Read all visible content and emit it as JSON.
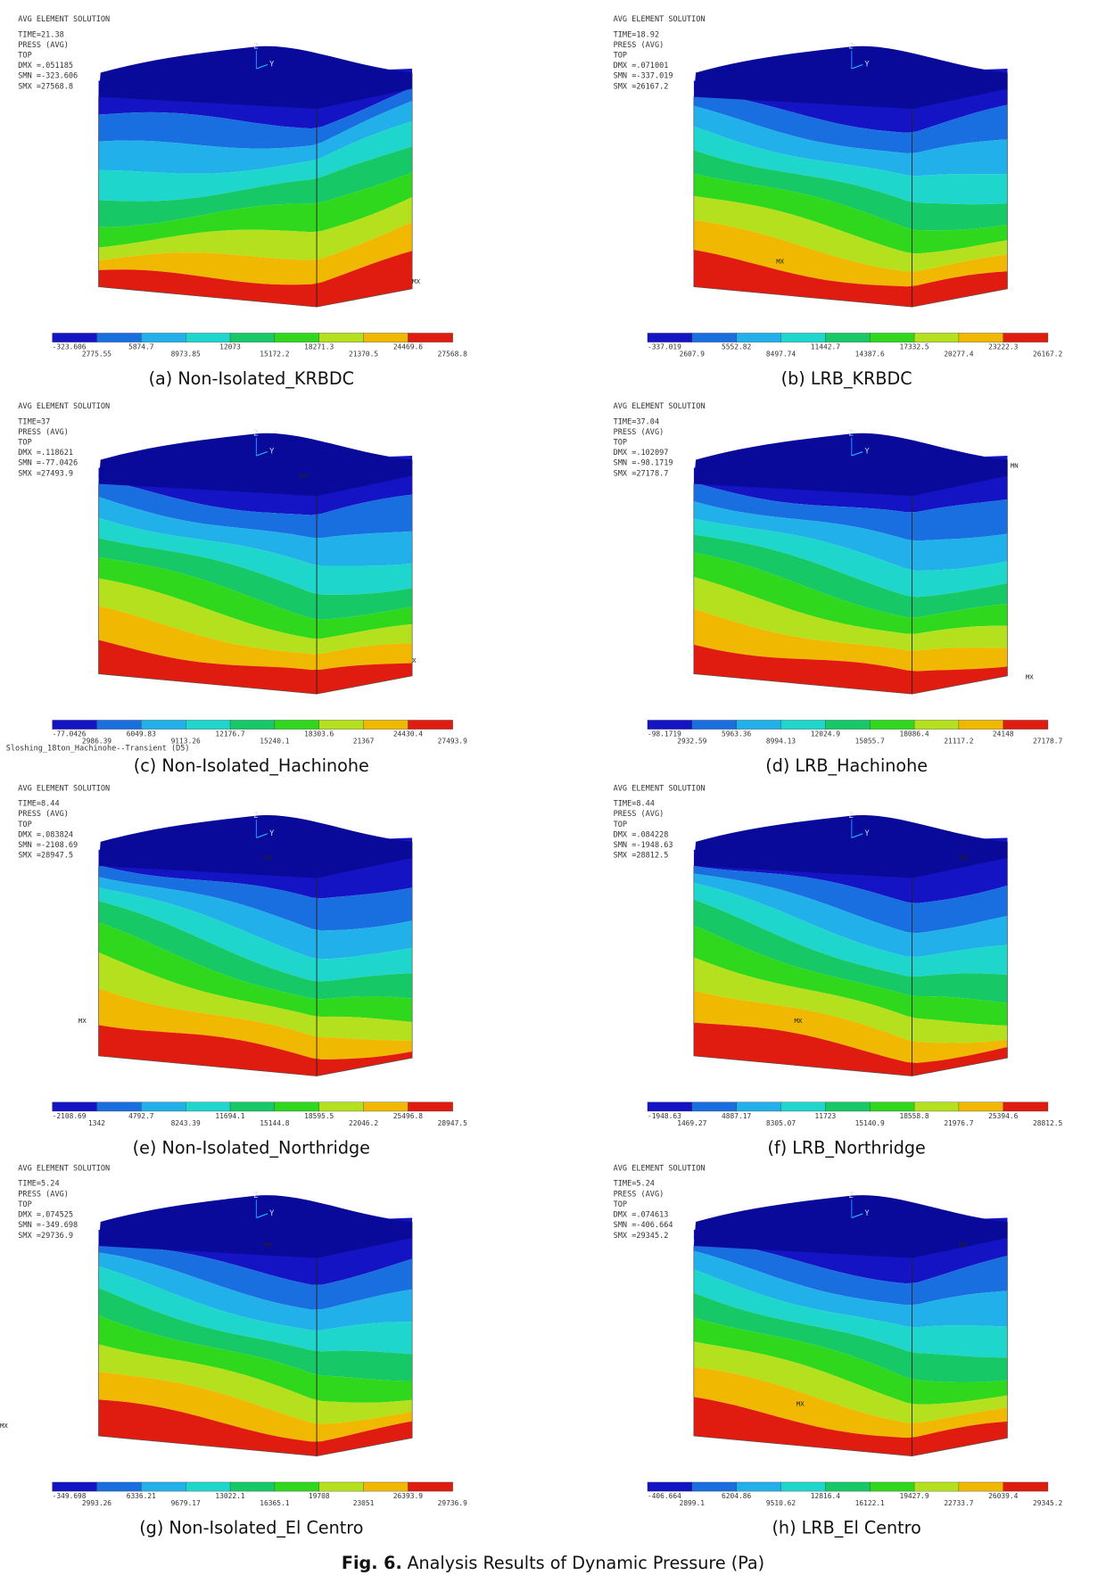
{
  "panels": [
    {
      "header": [
        "AVG ELEMENT SOLUTION",
        "TIME=21.38",
        "PRESS       (AVG)",
        "TOP",
        "DMX =.051185",
        "SMN =-323.606",
        "SMX =27568.8"
      ],
      "axis_labels": [
        "Z",
        "Y"
      ],
      "markers": [
        "MX"
      ],
      "colorbar": [
        "-323.606",
        "2775.55",
        "5874.7",
        "8973.85",
        "12073",
        "15172.2",
        "18271.3",
        "21370.5",
        "24469.6",
        "27568.8"
      ],
      "caption": "(a) Non-Isolated_KRBDC"
    },
    {
      "header": [
        "AVG ELEMENT SOLUTION",
        "TIME=18.92",
        "PRESS       (AVG)",
        "TOP",
        "DMX =.071001",
        "SMN =-337.019",
        "SMX =26167.2"
      ],
      "axis_labels": [
        "Z",
        "Y"
      ],
      "markers": [
        "MX"
      ],
      "colorbar": [
        "-337.019",
        "2607.9",
        "5552.82",
        "8497.74",
        "11442.7",
        "14387.6",
        "17332.5",
        "20277.4",
        "23222.3",
        "26167.2"
      ],
      "caption": "(b) LRB_KRBDC"
    },
    {
      "header": [
        "AVG ELEMENT SOLUTION",
        "TIME=37",
        "PRESS       (AVG)",
        "TOP",
        "DMX =.118621",
        "SMN =-77.0426",
        "SMX =27493.9"
      ],
      "axis_labels": [
        "Z",
        "Y"
      ],
      "markers": [
        "MN",
        "X"
      ],
      "colorbar": [
        "-77.0426",
        "2986.39",
        "6049.83",
        "9113.26",
        "12176.7",
        "15240.1",
        "18303.6",
        "21367",
        "24430.4",
        "27493.9"
      ],
      "extra": "Sloshing_18ton_Hachinohe--Transient (D5)",
      "caption": "(c) Non-Isolated_Hachinohe"
    },
    {
      "header": [
        "AVG ELEMENT SOLUTION",
        "TIME=37.04",
        "PRESS       (AVG)",
        "TOP",
        "DMX =.102097",
        "SMN =-98.1719",
        "SMX =27178.7"
      ],
      "axis_labels": [
        "Z",
        "Y"
      ],
      "markers": [
        "MN",
        "MX"
      ],
      "colorbar": [
        "-98.1719",
        "2932.59",
        "5963.36",
        "8994.13",
        "12024.9",
        "15055.7",
        "18086.4",
        "21117.2",
        "24148",
        "27178.7"
      ],
      "caption": "(d) LRB_Hachinohe"
    },
    {
      "header": [
        "AVG ELEMENT SOLUTION",
        "TIME=8.44",
        "PRESS       (AVG)",
        "TOP",
        "DMX =.083824",
        "SMN =-2108.69",
        "SMX =28947.5"
      ],
      "axis_labels": [
        "Z",
        "Y"
      ],
      "markers": [
        "MN",
        "MX"
      ],
      "colorbar": [
        "-2108.69",
        "1342",
        "4792.7",
        "8243.39",
        "11694.1",
        "15144.8",
        "18595.5",
        "22046.2",
        "25496.8",
        "28947.5"
      ],
      "caption": "(e) Non-Isolated_Northridge"
    },
    {
      "header": [
        "AVG ELEMENT SOLUTION",
        "TIME=8.44",
        "PRESS       (AVG)",
        "TOP",
        "DMX =.084228",
        "SMN =-1948.63",
        "SMX =28812.5"
      ],
      "axis_labels": [
        "Z",
        "Y"
      ],
      "markers": [
        "MN",
        "MX"
      ],
      "colorbar": [
        "-1948.63",
        "1469.27",
        "4887.17",
        "8305.07",
        "11723",
        "15140.9",
        "18558.8",
        "21976.7",
        "25394.6",
        "28812.5"
      ],
      "caption": "(f) LRB_Northridge"
    },
    {
      "header": [
        "AVG ELEMENT SOLUTION",
        "TIME=5.24",
        "PRESS       (AVG)",
        "TOP",
        "DMX =.074525",
        "SMN =-349.698",
        "SMX =29736.9"
      ],
      "axis_labels": [
        "Z",
        "Y"
      ],
      "markers": [
        "MN",
        "MX"
      ],
      "colorbar": [
        "-349.698",
        "2993.26",
        "6336.21",
        "9679.17",
        "13022.1",
        "16365.1",
        "19708",
        "23051",
        "26393.9",
        "29736.9"
      ],
      "caption": "(g) Non-Isolated_El Centro"
    },
    {
      "header": [
        "AVG ELEMENT SOLUTION",
        "TIME=5.24",
        "PRESS       (AVG)",
        "TOP",
        "DMX =.074613",
        "SMN =-406.664",
        "SMX =29345.2"
      ],
      "axis_labels": [
        "Z",
        "Y"
      ],
      "markers": [
        "MN",
        "MX"
      ],
      "colorbar": [
        "-406.664",
        "2899.1",
        "6204.86",
        "9510.62",
        "12816.4",
        "16122.1",
        "19427.9",
        "22733.7",
        "26039.4",
        "29345.2"
      ],
      "caption": "(h) LRB_El Centro"
    }
  ],
  "figure_label": "Fig. 6.",
  "figure_caption": "Analysis Results of Dynamic Pressure (Pa)"
}
